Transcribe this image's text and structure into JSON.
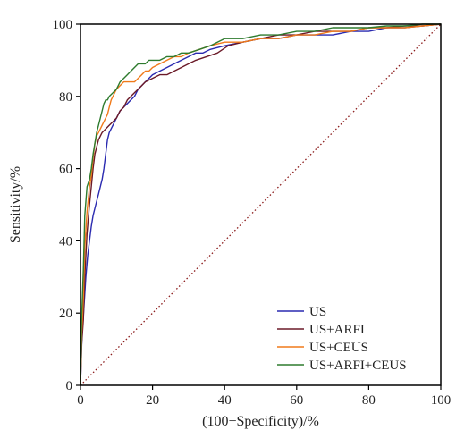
{
  "chart_data": {
    "type": "line",
    "title": "",
    "xlabel": "(100−Specificity)/%",
    "ylabel": "Sensitivity/%",
    "xlim": [
      0,
      100
    ],
    "ylim": [
      0,
      100
    ],
    "xticks": [
      "0",
      "20",
      "40",
      "60",
      "80",
      "100"
    ],
    "yticks": [
      "0",
      "20",
      "40",
      "60",
      "80",
      "100"
    ],
    "grid": false,
    "legend_position": "bottom-right",
    "reference_line": {
      "x": [
        0,
        100
      ],
      "y": [
        0,
        100
      ],
      "style": "dotted",
      "color": "#8b1a1a"
    },
    "series": [
      {
        "name": "US",
        "color": "#2a2ab0",
        "x": [
          0,
          0.3,
          0.5,
          1,
          1.5,
          2,
          2.5,
          3,
          3.5,
          4,
          4.5,
          5,
          5.5,
          6,
          6.5,
          7,
          7.5,
          8,
          9,
          10,
          11,
          12,
          13,
          14,
          15,
          16,
          17,
          18,
          19,
          20,
          22,
          24,
          26,
          28,
          30,
          32,
          34,
          36,
          40,
          45,
          50,
          55,
          60,
          65,
          70,
          75,
          80,
          85,
          90,
          95,
          100
        ],
        "y": [
          0,
          10,
          15,
          22,
          30,
          36,
          40,
          44,
          47,
          49,
          51,
          53,
          55,
          57,
          60,
          64,
          68,
          70,
          72,
          74,
          76,
          77,
          78,
          79,
          80,
          82,
          83,
          84,
          85,
          86,
          87,
          88,
          89,
          90,
          91,
          92,
          92,
          93,
          94,
          95,
          96,
          96,
          97,
          97,
          97,
          98,
          98,
          99,
          99,
          99.5,
          100
        ]
      },
      {
        "name": "US+ARFI",
        "color": "#6b1a28",
        "x": [
          0,
          0.3,
          0.8,
          1.2,
          1.8,
          2.5,
          3,
          3.5,
          4,
          4.5,
          5,
          5.5,
          6,
          7,
          8,
          9,
          10,
          11,
          12,
          13,
          14,
          15,
          16,
          17,
          18,
          20,
          22,
          24,
          26,
          28,
          30,
          32,
          35,
          38,
          41,
          45,
          50,
          55,
          60,
          65,
          70,
          75,
          80,
          85,
          90,
          95,
          100
        ],
        "y": [
          0,
          11,
          18,
          30,
          42,
          50,
          55,
          60,
          64,
          66,
          68,
          69,
          70,
          71,
          72,
          73,
          74,
          76,
          77,
          79,
          80,
          81,
          82,
          83,
          84,
          85,
          86,
          86,
          87,
          88,
          89,
          90,
          91,
          92,
          94,
          95,
          96,
          97,
          97,
          98,
          98,
          98,
          99,
          99,
          99.5,
          99.5,
          100
        ]
      },
      {
        "name": "US+CEUS",
        "color": "#f07a1a",
        "x": [
          0,
          0.3,
          0.8,
          1.2,
          1.8,
          2.5,
          3,
          3.5,
          4,
          4.5,
          5,
          5.5,
          6,
          6.5,
          7,
          7.5,
          8,
          8.5,
          9,
          10,
          11,
          12,
          13,
          14,
          15,
          16,
          17,
          18,
          19,
          20,
          22,
          24,
          26,
          28,
          30,
          33,
          36,
          40,
          45,
          50,
          55,
          60,
          65,
          70,
          75,
          80,
          85,
          90,
          95,
          100
        ],
        "y": [
          0,
          14,
          24,
          38,
          48,
          55,
          58,
          63,
          67,
          69,
          70,
          71,
          72,
          73,
          74,
          75,
          77,
          79,
          80,
          82,
          83,
          84,
          84,
          84,
          84,
          85,
          86,
          87,
          87,
          88,
          89,
          90,
          91,
          91,
          92,
          93,
          94,
          95,
          95,
          96,
          96,
          97,
          97,
          98,
          98,
          99,
          99,
          99,
          99.5,
          100
        ]
      },
      {
        "name": "US+ARFI+CEUS",
        "color": "#2e7b2e",
        "x": [
          0,
          0.3,
          0.8,
          1.2,
          1.8,
          2.5,
          3,
          3.5,
          4,
          4.5,
          5,
          5.5,
          6,
          6.5,
          7,
          7.5,
          8,
          9,
          10,
          11,
          12,
          13,
          14,
          15,
          16,
          17,
          18,
          19,
          20,
          22,
          24,
          26,
          28,
          30,
          33,
          36,
          40,
          45,
          50,
          55,
          60,
          65,
          70,
          75,
          80,
          85,
          90,
          95,
          100
        ],
        "y": [
          0,
          18,
          32,
          47,
          55,
          57,
          60,
          64,
          67,
          70,
          72,
          74,
          76,
          78,
          79,
          79,
          80,
          81,
          82,
          84,
          85,
          86,
          87,
          88,
          89,
          89,
          89,
          90,
          90,
          90,
          91,
          91,
          92,
          92,
          93,
          94,
          96,
          96,
          97,
          97,
          98,
          98,
          99,
          99,
          99,
          99.5,
          99.5,
          100,
          100
        ]
      }
    ]
  }
}
